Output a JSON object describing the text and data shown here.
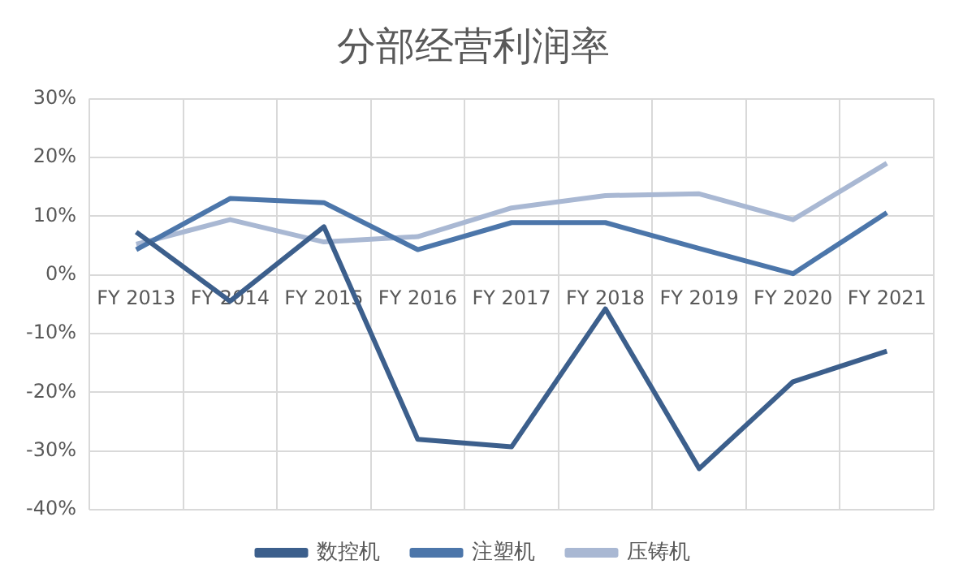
{
  "chart_data": {
    "type": "line",
    "title": "分部经营利润率",
    "categories": [
      "FY 2013",
      "FY 2014",
      "FY 2015",
      "FY 2016",
      "FY 2017",
      "FY 2018",
      "FY 2019",
      "FY 2020",
      "FY 2021"
    ],
    "series": [
      {
        "name": "数控机",
        "color": "#3c5f8c",
        "values": [
          7.3,
          -4.5,
          8.2,
          -28,
          -29.3,
          -5.8,
          -33,
          -18.2,
          -13
        ]
      },
      {
        "name": "注塑机",
        "color": "#4c76aa",
        "values": [
          4.3,
          13,
          12.3,
          4.3,
          8.9,
          8.9,
          4.5,
          0.2,
          10.6
        ]
      },
      {
        "name": "压铸机",
        "color": "#a9b8d3",
        "values": [
          5.2,
          9.4,
          5.6,
          6.5,
          11.4,
          13.5,
          13.8,
          9.4,
          19
        ]
      }
    ],
    "ylim": [
      -40,
      30
    ],
    "yticks": [
      {
        "value": -40,
        "label": "-40%"
      },
      {
        "value": -30,
        "label": "-30%"
      },
      {
        "value": -20,
        "label": "-20%"
      },
      {
        "value": -10,
        "label": "-10%"
      },
      {
        "value": 0,
        "label": "0%"
      },
      {
        "value": 10,
        "label": "10%"
      },
      {
        "value": 20,
        "label": "20%"
      },
      {
        "value": 30,
        "label": "30%"
      }
    ],
    "grid": true,
    "legend": "bottom",
    "marker": "none",
    "line_style": "solid"
  }
}
